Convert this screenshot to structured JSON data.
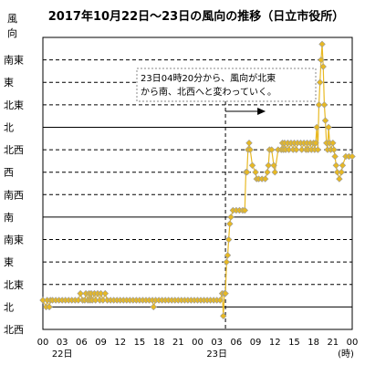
{
  "chart_data": {
    "type": "line",
    "title": "2017年10月22日～23日の風向の推移（日立市役所）",
    "ylabel": "風向",
    "xlabel": "(時)",
    "y_categories": [
      "北西",
      "北",
      "北東",
      "東",
      "南東",
      "南",
      "南西",
      "西",
      "北西",
      "北",
      "北東",
      "東",
      "南東"
    ],
    "y_solid_lines": [
      1,
      5,
      9
    ],
    "x_ticks": [
      "00",
      "03",
      "06",
      "09",
      "12",
      "15",
      "18",
      "21",
      "00",
      "03",
      "06",
      "09",
      "12",
      "15",
      "18",
      "21",
      "00"
    ],
    "x_day_labels": [
      {
        "label": "22日",
        "tick": 1
      },
      {
        "label": "23日",
        "tick": 9
      }
    ],
    "xlim": [
      0,
      48
    ],
    "annotation": {
      "lines": [
        "23日04時20分から、風向が北東",
        "から南、北西へと変わっていく。"
      ],
      "marker_hour": 28.33
    },
    "series": [
      {
        "color": "#e8b923",
        "points": [
          [
            0.0,
            1.3
          ],
          [
            0.5,
            1.0
          ],
          [
            0.67,
            1.3
          ],
          [
            1.0,
            1.0
          ],
          [
            1.17,
            1.3
          ],
          [
            1.5,
            1.3
          ],
          [
            2.0,
            1.3
          ],
          [
            2.5,
            1.3
          ],
          [
            3.0,
            1.3
          ],
          [
            3.5,
            1.3
          ],
          [
            4.0,
            1.3
          ],
          [
            4.5,
            1.3
          ],
          [
            5.0,
            1.3
          ],
          [
            5.5,
            1.3
          ],
          [
            5.83,
            1.6
          ],
          [
            6.17,
            1.3
          ],
          [
            6.5,
            1.3
          ],
          [
            6.67,
            1.6
          ],
          [
            7.0,
            1.3
          ],
          [
            7.17,
            1.6
          ],
          [
            7.33,
            1.3
          ],
          [
            7.5,
            1.6
          ],
          [
            7.67,
            1.3
          ],
          [
            8.0,
            1.6
          ],
          [
            8.17,
            1.3
          ],
          [
            8.5,
            1.6
          ],
          [
            8.83,
            1.3
          ],
          [
            9.0,
            1.6
          ],
          [
            9.33,
            1.3
          ],
          [
            9.67,
            1.6
          ],
          [
            10.0,
            1.3
          ],
          [
            10.5,
            1.3
          ],
          [
            11.0,
            1.3
          ],
          [
            11.5,
            1.3
          ],
          [
            12.0,
            1.3
          ],
          [
            12.5,
            1.3
          ],
          [
            13.0,
            1.3
          ],
          [
            13.5,
            1.3
          ],
          [
            14.0,
            1.3
          ],
          [
            14.5,
            1.3
          ],
          [
            15.0,
            1.3
          ],
          [
            15.5,
            1.3
          ],
          [
            16.0,
            1.3
          ],
          [
            16.5,
            1.3
          ],
          [
            17.0,
            1.3
          ],
          [
            17.17,
            1.0
          ],
          [
            17.5,
            1.3
          ],
          [
            18.0,
            1.3
          ],
          [
            18.5,
            1.3
          ],
          [
            19.0,
            1.3
          ],
          [
            19.5,
            1.3
          ],
          [
            20.0,
            1.3
          ],
          [
            20.5,
            1.3
          ],
          [
            21.0,
            1.3
          ],
          [
            21.5,
            1.3
          ],
          [
            22.0,
            1.3
          ],
          [
            22.5,
            1.3
          ],
          [
            23.0,
            1.3
          ],
          [
            23.5,
            1.3
          ],
          [
            24.0,
            1.3
          ],
          [
            24.5,
            1.3
          ],
          [
            25.0,
            1.3
          ],
          [
            25.5,
            1.3
          ],
          [
            26.0,
            1.3
          ],
          [
            26.5,
            1.3
          ],
          [
            27.0,
            1.3
          ],
          [
            27.5,
            1.3
          ],
          [
            27.83,
            1.6
          ],
          [
            28.0,
            0.6
          ],
          [
            28.17,
            1.6
          ],
          [
            28.33,
            1.6
          ],
          [
            28.5,
            3.0
          ],
          [
            28.67,
            3.3
          ],
          [
            28.83,
            4.0
          ],
          [
            29.0,
            4.7
          ],
          [
            29.17,
            5.0
          ],
          [
            29.5,
            5.3
          ],
          [
            30.0,
            5.3
          ],
          [
            30.5,
            5.3
          ],
          [
            31.0,
            5.3
          ],
          [
            31.33,
            5.3
          ],
          [
            31.5,
            7.0
          ],
          [
            31.67,
            7.0
          ],
          [
            31.83,
            8.0
          ],
          [
            32.0,
            8.3
          ],
          [
            32.17,
            8.0
          ],
          [
            32.5,
            7.3
          ],
          [
            33.0,
            7.0
          ],
          [
            33.17,
            6.7
          ],
          [
            33.5,
            6.7
          ],
          [
            34.0,
            6.7
          ],
          [
            34.5,
            6.7
          ],
          [
            34.83,
            7.0
          ],
          [
            35.0,
            7.3
          ],
          [
            35.17,
            8.0
          ],
          [
            35.5,
            8.0
          ],
          [
            35.83,
            7.3
          ],
          [
            36.0,
            7.0
          ],
          [
            36.5,
            8.0
          ],
          [
            37.0,
            8.0
          ],
          [
            37.17,
            8.3
          ],
          [
            37.33,
            8.0
          ],
          [
            37.5,
            8.3
          ],
          [
            37.67,
            8.0
          ],
          [
            38.0,
            8.3
          ],
          [
            38.17,
            8.0
          ],
          [
            38.5,
            8.3
          ],
          [
            38.83,
            8.0
          ],
          [
            39.0,
            8.3
          ],
          [
            39.33,
            8.0
          ],
          [
            39.5,
            8.3
          ],
          [
            40.0,
            8.3
          ],
          [
            40.17,
            8.0
          ],
          [
            40.5,
            8.3
          ],
          [
            40.83,
            8.0
          ],
          [
            41.0,
            8.3
          ],
          [
            41.17,
            8.0
          ],
          [
            41.5,
            8.3
          ],
          [
            41.67,
            8.0
          ],
          [
            42.0,
            8.3
          ],
          [
            42.17,
            8.0
          ],
          [
            42.33,
            8.3
          ],
          [
            42.5,
            9.0
          ],
          [
            42.67,
            8.0
          ],
          [
            42.83,
            10.0
          ],
          [
            43.0,
            11.0
          ],
          [
            43.17,
            12.0
          ],
          [
            43.33,
            12.7
          ],
          [
            43.5,
            11.7
          ],
          [
            43.67,
            10.0
          ],
          [
            43.83,
            9.3
          ],
          [
            44.0,
            8.3
          ],
          [
            44.17,
            8.0
          ],
          [
            44.33,
            9.0
          ],
          [
            44.5,
            8.3
          ],
          [
            44.67,
            8.0
          ],
          [
            45.0,
            8.3
          ],
          [
            45.17,
            8.0
          ],
          [
            45.33,
            7.7
          ],
          [
            45.5,
            7.3
          ],
          [
            45.67,
            7.0
          ],
          [
            46.0,
            6.7
          ],
          [
            46.33,
            7.0
          ],
          [
            46.5,
            7.3
          ],
          [
            47.0,
            7.7
          ],
          [
            47.5,
            7.7
          ],
          [
            48.0,
            7.7
          ]
        ]
      }
    ]
  }
}
